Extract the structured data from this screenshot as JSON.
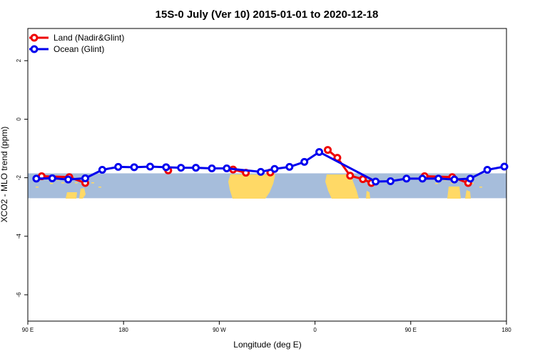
{
  "chart_data": {
    "type": "line",
    "title": "15S-0 July (Ver 10)   2015-01-01 to 2020-12-18",
    "xlabel": "Longitude (deg E)",
    "ylabel": "XCO2 - MLO trend (ppm)",
    "x_ticks": [
      {
        "value": 90,
        "label": "90 E"
      },
      {
        "value": 180,
        "label": "180"
      },
      {
        "value": 270,
        "label": "90 W"
      },
      {
        "value": 360,
        "label": "0"
      },
      {
        "value": 450,
        "label": "90 E"
      },
      {
        "value": 540,
        "label": "180"
      }
    ],
    "y_ticks": [
      2,
      0,
      -2,
      -4,
      -6
    ],
    "xlim": [
      90,
      540
    ],
    "ylim": [
      -6.9,
      3.1
    ],
    "grid": false,
    "legend_position": "top-left",
    "latitude_band": {
      "from": -15,
      "to": 0,
      "y_top": -1.85,
      "y_bottom": -2.7
    },
    "series": [
      {
        "name": "Land (Nadir&Glint)",
        "color": "#ee0000",
        "segments": [
          {
            "x": [
              103,
              129,
              144
            ],
            "y": [
              -1.95,
              -1.98,
              -2.18
            ]
          },
          {
            "x": [
              222
            ],
            "y": [
              -1.75
            ]
          },
          {
            "x": [
              283,
              295
            ],
            "y": [
              -1.72,
              -1.83
            ]
          },
          {
            "x": [
              318
            ],
            "y": [
              -1.82
            ]
          },
          {
            "x": [
              372,
              381,
              393,
              405,
              413
            ],
            "y": [
              -1.05,
              -1.32,
              -1.93,
              -2.05,
              -2.18
            ]
          },
          {
            "x": [
              463,
              489,
              504
            ],
            "y": [
              -1.95,
              -1.98,
              -2.18
            ]
          }
        ]
      },
      {
        "name": "Ocean (Glint)",
        "color": "#0000ee",
        "segments": [
          {
            "x": [
              98,
              113,
              128,
              144,
              160,
              175,
              190,
              205,
              220,
              234,
              248,
              263,
              277,
              309,
              322,
              336,
              350,
              364,
              417,
              431,
              446,
              461,
              476,
              491,
              506,
              522,
              538
            ],
            "y": [
              -2.03,
              -2.02,
              -2.06,
              -2.02,
              -1.73,
              -1.63,
              -1.64,
              -1.62,
              -1.64,
              -1.66,
              -1.66,
              -1.68,
              -1.68,
              -1.8,
              -1.7,
              -1.63,
              -1.46,
              -1.12,
              -2.13,
              -2.12,
              -2.03,
              -2.03,
              -2.03,
              -2.06,
              -2.03,
              -1.73,
              -1.62
            ]
          }
        ]
      }
    ]
  }
}
